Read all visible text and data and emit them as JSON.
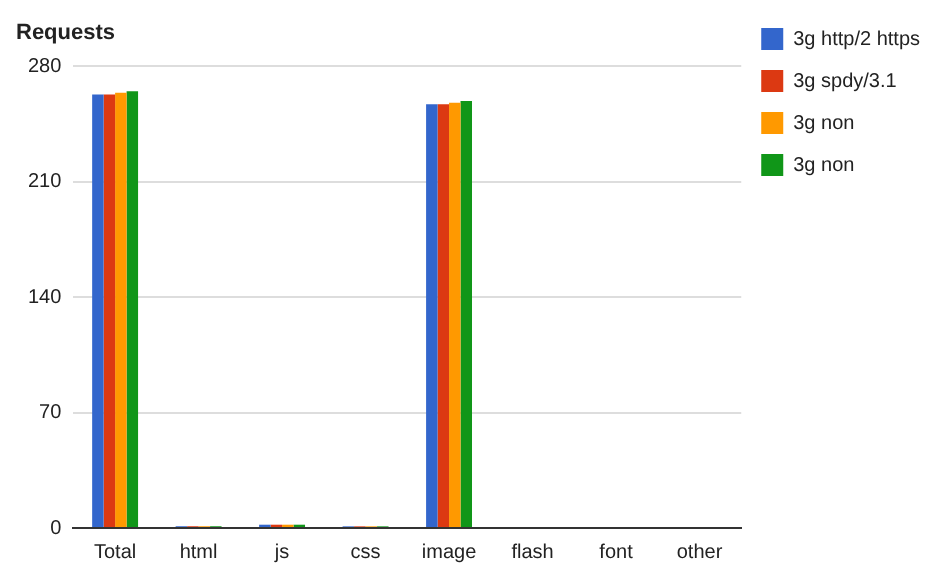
{
  "chart_data": {
    "type": "bar",
    "title": "Requests",
    "categories": [
      "Total",
      "html",
      "js",
      "css",
      "image",
      "flash",
      "font",
      "other"
    ],
    "series": [
      {
        "name": "3g http/2 https",
        "color": "#3366cc",
        "values": [
          263,
          1,
          2,
          1,
          257,
          0,
          0,
          0
        ]
      },
      {
        "name": "3g spdy/3.1",
        "color": "#dc3912",
        "values": [
          263,
          1,
          2,
          1,
          257,
          0,
          0,
          0
        ]
      },
      {
        "name": "3g non",
        "color": "#ff9900",
        "values": [
          264,
          1,
          2,
          1,
          258,
          0,
          0,
          0
        ]
      },
      {
        "name": "3g non",
        "color": "#109618",
        "values": [
          265,
          1,
          2,
          1,
          259,
          0,
          0,
          0
        ]
      }
    ],
    "ylim": [
      0,
      280
    ],
    "yticks": [
      0,
      70,
      140,
      210,
      280
    ],
    "grid": "y",
    "legend": "right"
  }
}
